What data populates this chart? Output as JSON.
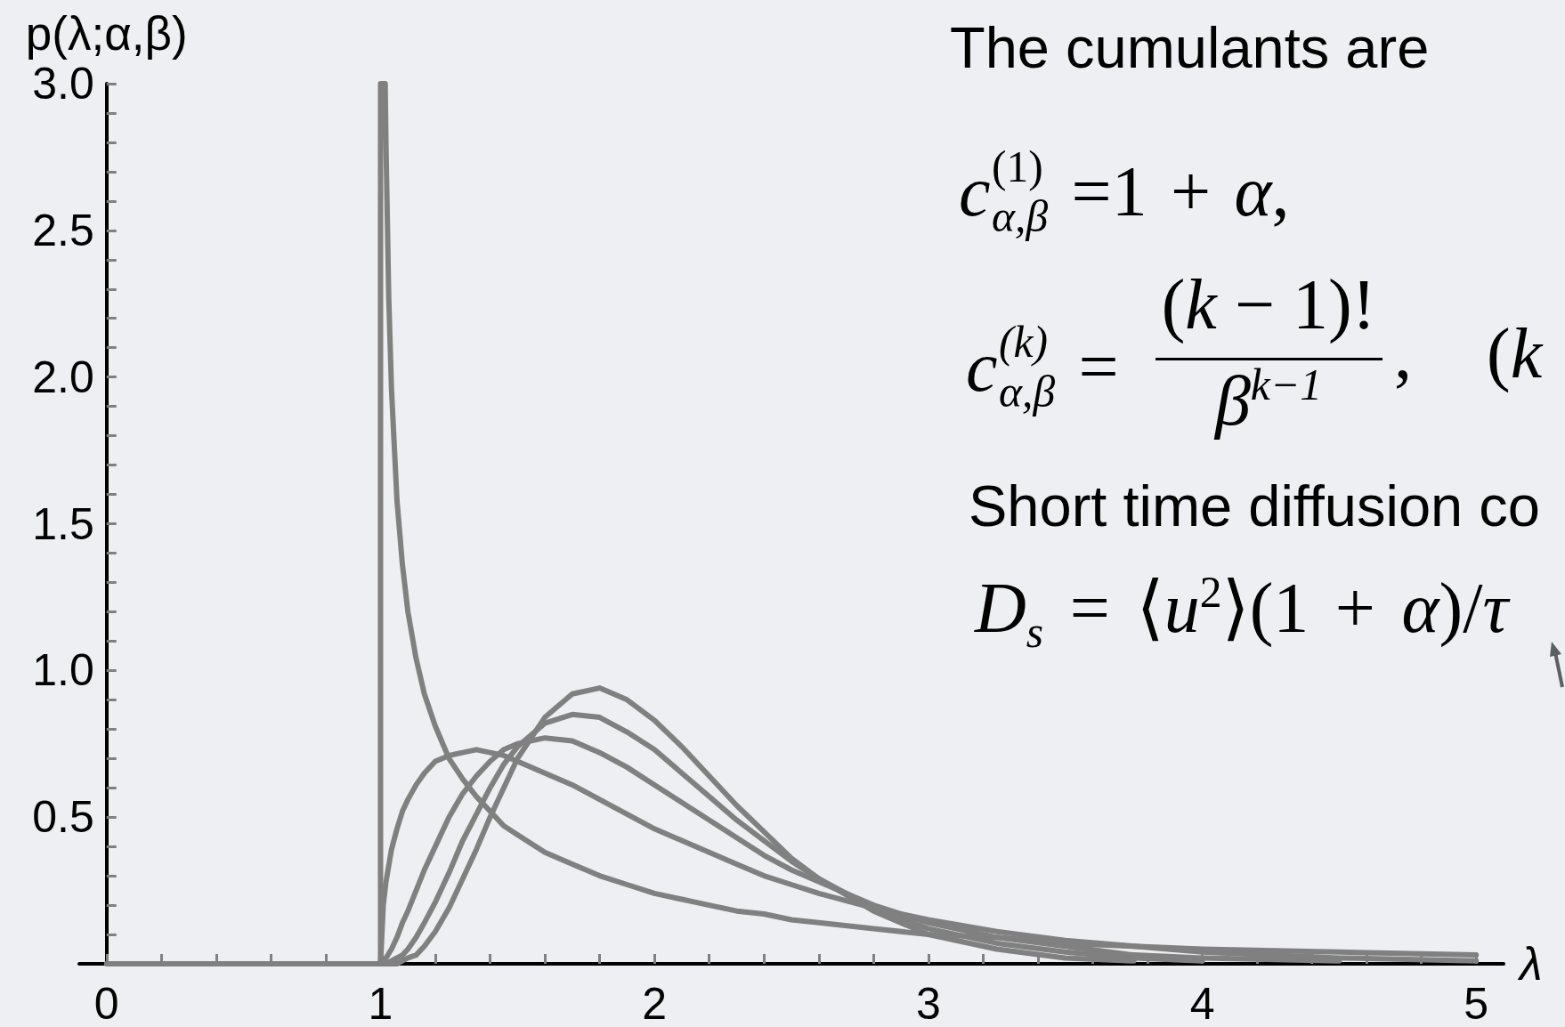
{
  "chart_data": {
    "type": "line",
    "xlabel": "λ",
    "ylabel": "p(λ;α,β)",
    "annotations": [
      "The cumulants are",
      "c$^{(1)}$$_{α,β}$ =1 + α,",
      "c$^{(k)}$$_{α,β}$ =",
      "(k − 1)!",
      "β$^{k−1}$",
      ", (k",
      "Short time diffusion co",
      "D$_{s}$ = ⟨u$^{2}$⟩(1 + α)/τ"
    ],
    "series": [
      {
        "color": "#808080",
        "x": [
          0,
          1,
          1,
          1.017,
          1.02,
          1.03,
          1.04,
          1.06,
          1.08,
          1.1,
          1.13,
          1.16,
          1.2,
          1.25,
          1.3,
          1.35,
          1.4,
          1.45,
          1.5,
          1.6,
          1.7,
          1.8,
          1.9,
          2,
          2.1,
          2.2,
          2.3,
          2.4,
          2.5,
          2.6,
          2.8,
          3,
          3.25,
          3.5,
          3.75,
          4,
          4.5,
          5
        ],
        "values": [
          0,
          0,
          3.0,
          3.0,
          2.79,
          2.27,
          1.96,
          1.58,
          1.36,
          1.2,
          1.04,
          0.92,
          0.81,
          0.7,
          0.63,
          0.57,
          0.52,
          0.47,
          0.44,
          0.38,
          0.34,
          0.3,
          0.27,
          0.24,
          0.22,
          0.2,
          0.18,
          0.17,
          0.15,
          0.14,
          0.12,
          0.1,
          0.09,
          0.07,
          0.06,
          0.05,
          0.04,
          0.03
        ]
      },
      {
        "color": "#808080",
        "x": [
          1,
          1.01,
          1.02,
          1.04,
          1.06,
          1.08,
          1.1,
          1.13,
          1.16,
          1.2,
          1.25,
          1.3,
          1.35,
          1.4,
          1.45,
          1.5,
          1.6,
          1.7,
          1.8,
          1.9,
          2,
          2.1,
          2.2,
          2.3,
          2.4,
          2.5,
          2.6,
          2.8,
          3,
          3.25,
          3.5,
          3.75,
          4,
          4.5,
          5
        ],
        "values": [
          0,
          0.2,
          0.28,
          0.39,
          0.46,
          0.52,
          0.56,
          0.61,
          0.65,
          0.69,
          0.71,
          0.72,
          0.73,
          0.72,
          0.71,
          0.69,
          0.65,
          0.61,
          0.56,
          0.51,
          0.46,
          0.42,
          0.38,
          0.34,
          0.3,
          0.27,
          0.24,
          0.19,
          0.15,
          0.11,
          0.08,
          0.06,
          0.04,
          0.02,
          0.01
        ]
      },
      {
        "color": "#808080",
        "x": [
          1,
          1.01,
          1.02,
          1.04,
          1.06,
          1.08,
          1.1,
          1.13,
          1.16,
          1.2,
          1.25,
          1.3,
          1.35,
          1.4,
          1.45,
          1.5,
          1.6,
          1.7,
          1.8,
          1.9,
          2,
          2.1,
          2.2,
          2.3,
          2.4,
          2.5,
          2.6,
          2.8,
          3,
          3.25,
          3.5,
          3.75,
          4,
          4.5
        ],
        "values": [
          0,
          0.01,
          0.02,
          0.05,
          0.09,
          0.14,
          0.18,
          0.25,
          0.32,
          0.4,
          0.5,
          0.58,
          0.64,
          0.69,
          0.73,
          0.75,
          0.77,
          0.76,
          0.72,
          0.67,
          0.61,
          0.55,
          0.49,
          0.43,
          0.37,
          0.32,
          0.28,
          0.2,
          0.14,
          0.09,
          0.06,
          0.03,
          0.02,
          0.01
        ]
      },
      {
        "color": "#808080",
        "x": [
          1,
          1.01,
          1.02,
          1.04,
          1.06,
          1.08,
          1.1,
          1.13,
          1.16,
          1.2,
          1.25,
          1.3,
          1.35,
          1.4,
          1.45,
          1.5,
          1.6,
          1.7,
          1.8,
          1.9,
          2,
          2.1,
          2.2,
          2.3,
          2.4,
          2.5,
          2.6,
          2.8,
          3,
          3.25,
          3.5,
          3.75,
          4
        ],
        "values": [
          0,
          0,
          0,
          0.01,
          0.02,
          0.03,
          0.05,
          0.09,
          0.14,
          0.21,
          0.31,
          0.42,
          0.51,
          0.6,
          0.68,
          0.74,
          0.82,
          0.85,
          0.84,
          0.79,
          0.73,
          0.65,
          0.57,
          0.49,
          0.42,
          0.35,
          0.29,
          0.19,
          0.12,
          0.07,
          0.04,
          0.02,
          0.01
        ]
      },
      {
        "color": "#808080",
        "x": [
          1,
          1.01,
          1.02,
          1.04,
          1.06,
          1.08,
          1.1,
          1.13,
          1.16,
          1.2,
          1.25,
          1.3,
          1.35,
          1.4,
          1.45,
          1.5,
          1.6,
          1.7,
          1.8,
          1.9,
          2,
          2.1,
          2.2,
          2.3,
          2.4,
          2.5,
          2.6,
          2.8,
          3,
          3.25,
          3.5,
          3.75
        ],
        "values": [
          0,
          0,
          0,
          0,
          0,
          0.01,
          0.02,
          0.03,
          0.06,
          0.11,
          0.19,
          0.29,
          0.39,
          0.5,
          0.6,
          0.7,
          0.84,
          0.92,
          0.94,
          0.9,
          0.83,
          0.74,
          0.64,
          0.54,
          0.45,
          0.36,
          0.29,
          0.18,
          0.1,
          0.05,
          0.02,
          0.01
        ]
      }
    ],
    "xlim": [
      -0.1,
      5.1
    ],
    "xticks": [
      0,
      {
        "value": 0.2,
        "label": null
      },
      {
        "value": 0.4,
        "label": null
      },
      {
        "value": 0.6,
        "label": null
      },
      {
        "value": 0.8,
        "label": null
      },
      1,
      {
        "value": 1.2,
        "label": null
      },
      {
        "value": 1.4,
        "label": null
      },
      {
        "value": 1.6,
        "label": null
      },
      {
        "value": 1.8,
        "label": null
      },
      2,
      {
        "value": 2.2,
        "label": null
      },
      {
        "value": 2.4,
        "label": null
      },
      {
        "value": 2.6,
        "label": null
      },
      {
        "value": 2.8,
        "label": null
      },
      3,
      {
        "value": 3.2,
        "label": null
      },
      {
        "value": 3.4,
        "label": null
      },
      {
        "value": 3.6,
        "label": null
      },
      {
        "value": 3.8,
        "label": null
      },
      4,
      {
        "value": 4.2,
        "label": null
      },
      {
        "value": 4.4,
        "label": null
      },
      {
        "value": 4.6,
        "label": null
      },
      {
        "value": 4.8,
        "label": null
      },
      5
    ],
    "ylim": [
      0,
      3
    ],
    "yticks": [
      {
        "value": 0.1,
        "label": null
      },
      {
        "value": 0.2,
        "label": null
      },
      {
        "value": 0.3,
        "label": null
      },
      {
        "value": 0.4,
        "label": null
      },
      0.5,
      {
        "value": 0.6,
        "label": null
      },
      {
        "value": 0.7,
        "label": null
      },
      {
        "value": 0.8,
        "label": null
      },
      {
        "value": 0.9,
        "label": null
      },
      {
        "value": 1,
        "label": "1.0"
      },
      {
        "value": 1.1,
        "label": null
      },
      {
        "value": 1.2,
        "label": null
      },
      {
        "value": 1.3,
        "label": null
      },
      {
        "value": 1.4,
        "label": null
      },
      1.5,
      {
        "value": 1.6,
        "label": null
      },
      {
        "value": 1.7,
        "label": null
      },
      {
        "value": 1.8,
        "label": null
      },
      {
        "value": 1.9,
        "label": null
      },
      {
        "value": 2,
        "label": "2.0"
      },
      {
        "value": 2.1,
        "label": null
      },
      {
        "value": 2.2,
        "label": null
      },
      {
        "value": 2.3,
        "label": null
      },
      {
        "value": 2.4,
        "label": null
      },
      2.5,
      {
        "value": 2.6,
        "label": null
      },
      {
        "value": 2.7,
        "label": null
      },
      {
        "value": 2.8,
        "label": null
      },
      {
        "value": 2.9,
        "label": null
      },
      {
        "value": 3,
        "label": "3.0"
      }
    ],
    "grid": false,
    "marker": "none",
    "line_style": "solid"
  }
}
